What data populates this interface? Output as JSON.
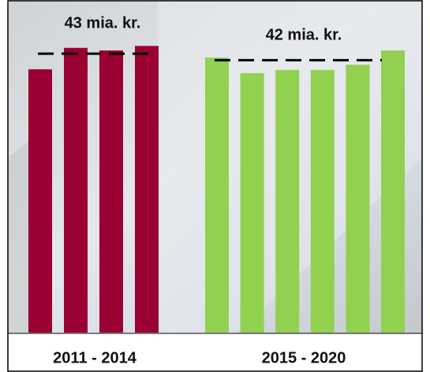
{
  "chart_data": {
    "type": "grouped-bar",
    "ylim": [
      0,
      48
    ],
    "groups": [
      {
        "label": "2011 - 2014",
        "color": "#9b0033",
        "values": [
          40.6,
          43.9,
          43.5,
          44.2
        ],
        "average": 43,
        "average_label": "43 mia. kr."
      },
      {
        "label": "2015 - 2020",
        "color": "#92d050",
        "values": [
          42.4,
          40.0,
          40.5,
          40.5,
          41.3,
          43.5
        ],
        "average": 42,
        "average_label": "42 mia. kr."
      }
    ]
  }
}
